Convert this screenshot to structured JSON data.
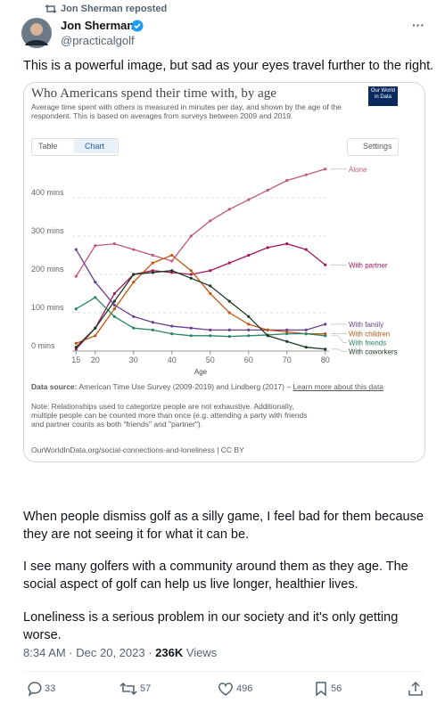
{
  "repost_label": "Jon Sherman reposted",
  "author": {
    "name": "Jon Sherman",
    "handle": "@practicalgolf"
  },
  "text_intro": "This is a powerful image, but sad as your eyes travel further to the right.",
  "embed": {
    "tab_table": "Table",
    "tab_chart": "Chart",
    "settings": "Settings",
    "logo": "Our World in Data",
    "source_label": "Data source:",
    "source_text": "American Time Use Survey (2009-2019) and Lindberg (2017) –",
    "source_link": "Learn more about this data",
    "note": "Note: Relationships used to categorize people are not exhaustive. Additionally, multiple people can be counted more than once (e.g. attending a party with friends and partner counts as both \"friends\" and \"partner\").",
    "url": "OurWorldInData.org/social-connections-and-loneliness | CC BY"
  },
  "chart_data": {
    "type": "line",
    "title": "Who Americans spend their time with, by age",
    "subtitle": "Average time spent with others is measured in minutes per day, and shown by the age of the respondent. This is based on averages from surveys between 2009 and 2019.",
    "x_label": "Age",
    "x": [
      15,
      20,
      25,
      30,
      35,
      40,
      45,
      50,
      55,
      60,
      65,
      70,
      75,
      80
    ],
    "xlim": [
      14,
      81
    ],
    "xticks": [
      15,
      20,
      30,
      40,
      50,
      60,
      70,
      80
    ],
    "ylim": [
      0,
      500
    ],
    "yticks": [
      {
        "value": 0,
        "label": "0 mins"
      },
      {
        "value": 100,
        "label": "100 mins"
      },
      {
        "value": 200,
        "label": "200 mins"
      },
      {
        "value": 300,
        "label": "300 mins"
      },
      {
        "value": 400,
        "label": "400 mins"
      }
    ],
    "grid": true,
    "series": [
      {
        "name": "Alone",
        "color": "#c2587a",
        "values": [
          195,
          275,
          280,
          265,
          250,
          235,
          300,
          340,
          370,
          395,
          420,
          445,
          460,
          475
        ]
      },
      {
        "name": "With partner",
        "color": "#a2185b",
        "values": [
          5,
          60,
          150,
          200,
          210,
          205,
          200,
          210,
          230,
          250,
          270,
          280,
          265,
          225
        ]
      },
      {
        "name": "With family",
        "color": "#6d3e91",
        "values": [
          265,
          180,
          120,
          90,
          75,
          65,
          60,
          55,
          55,
          55,
          55,
          55,
          55,
          70
        ]
      },
      {
        "name": "With children",
        "color": "#c05917",
        "values": [
          20,
          40,
          110,
          180,
          230,
          250,
          210,
          150,
          100,
          70,
          55,
          50,
          45,
          45
        ]
      },
      {
        "name": "With friends",
        "color": "#2c8465",
        "values": [
          110,
          140,
          90,
          60,
          55,
          45,
          40,
          40,
          38,
          40,
          42,
          45,
          45,
          40
        ]
      },
      {
        "name": "With coworkers",
        "color": "#1b3a1f",
        "values": [
          10,
          60,
          130,
          200,
          205,
          210,
          190,
          170,
          130,
          90,
          40,
          25,
          10,
          5
        ]
      }
    ]
  },
  "text_body": [
    "When people dismiss golf as a silly game, I feel bad for them because they are not seeing it for what it can be.",
    "I see many golfers with a community around them as they age. The social aspect of golf can help us live longer, healthier lives.",
    "Loneliness is a serious problem in our society and it's only getting worse."
  ],
  "meta": {
    "time": "8:34 AM · Dec 20, 2023 ·",
    "views_count": "236K",
    "views_label": "Views"
  },
  "actions": {
    "replies": "33",
    "reposts": "57",
    "likes": "496",
    "bookmarks": "56"
  }
}
